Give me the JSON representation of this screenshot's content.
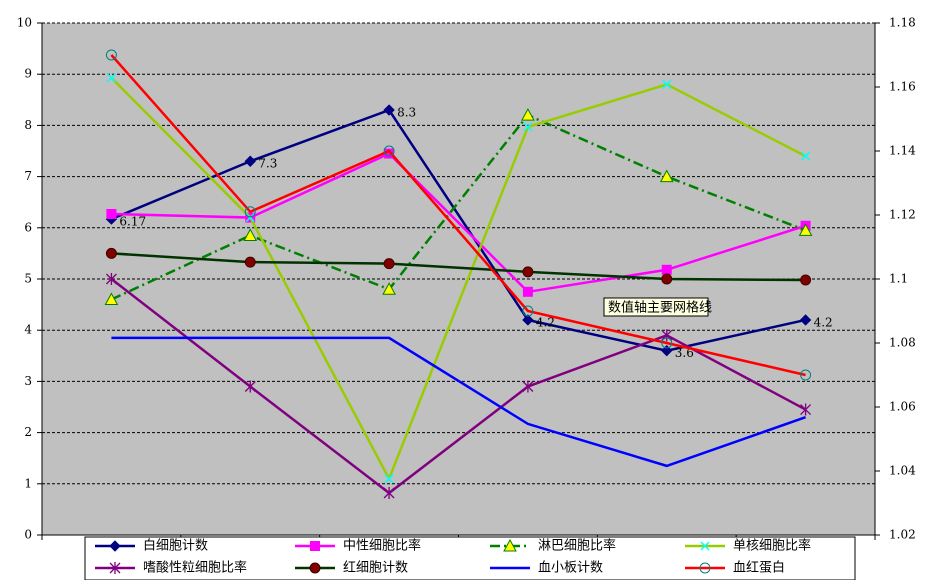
{
  "chart_data": {
    "type": "line",
    "categories": [
      null,
      null,
      null,
      null,
      null,
      null
    ],
    "ylim": [
      0,
      10
    ],
    "yticks": [
      0,
      1,
      2,
      3,
      4,
      5,
      6,
      7,
      8,
      9,
      10
    ],
    "y2lim": [
      1.02,
      1.18
    ],
    "y2ticks": [
      1.02,
      1.04,
      1.06,
      1.08,
      1.1,
      1.12,
      1.14,
      1.16,
      1.18
    ],
    "grid": true,
    "background": "#c0c0c0",
    "legend": "bottom",
    "tooltip": "数值轴主要网格线",
    "series": [
      {
        "name": "白细胞计数",
        "color": "#000080",
        "marker": "diamond",
        "data_labels": true,
        "values": [
          6.17,
          7.3,
          8.3,
          4.2,
          3.6,
          4.2
        ]
      },
      {
        "name": "中性细胞比率",
        "color": "#ff00ff",
        "marker": "square",
        "values": [
          6.27,
          6.2,
          7.45,
          4.75,
          5.18,
          6.04
        ]
      },
      {
        "name": "淋巴细胞比率",
        "color": "#008000",
        "marker": "triangle",
        "dash": true,
        "values": [
          4.6,
          5.85,
          4.8,
          8.2,
          7.0,
          5.95
        ]
      },
      {
        "name": "单核细胞比率",
        "color": "#99cc00",
        "marker": "x",
        "values": [
          8.93,
          6.2,
          1.1,
          7.97,
          8.8,
          7.4
        ]
      },
      {
        "name": "嗜酸性粒细胞比率",
        "color": "#800080",
        "marker": "star",
        "values": [
          5.0,
          2.9,
          0.82,
          2.9,
          3.9,
          2.45
        ]
      },
      {
        "name": "红细胞计数",
        "color": "#003300",
        "marker": "circle",
        "values": [
          5.5,
          5.33,
          5.3,
          5.14,
          5.0,
          4.98
        ]
      },
      {
        "name": "血小板计数",
        "color": "#0000ff",
        "marker": "none",
        "values": [
          3.85,
          3.85,
          3.85,
          2.17,
          1.35,
          2.3
        ]
      },
      {
        "name": "血红蛋白",
        "color": "#ff0000",
        "marker": "open-circle",
        "axis": "y2",
        "values": [
          1.17,
          1.121,
          1.14,
          1.09,
          1.08,
          1.07
        ]
      }
    ]
  }
}
